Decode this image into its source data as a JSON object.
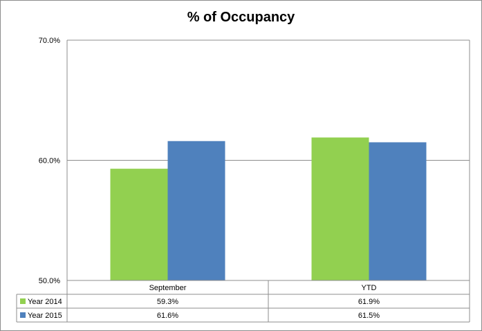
{
  "chart_data": {
    "type": "bar",
    "title": "% of Occupancy",
    "categories": [
      "September",
      "YTD"
    ],
    "series": [
      {
        "name": "Year 2014",
        "values": [
          59.3,
          61.9
        ],
        "labels": [
          "59.3%",
          "61.9%"
        ],
        "color": "#92d050"
      },
      {
        "name": "Year 2015",
        "values": [
          61.6,
          61.5
        ],
        "labels": [
          "61.6%",
          "61.5%"
        ],
        "color": "#4f81bd"
      }
    ],
    "ylim": [
      50,
      70
    ],
    "yticks": [
      50,
      60,
      70
    ],
    "ytick_labels": [
      "50.0%",
      "60.0%",
      "70.0%"
    ],
    "grid": true,
    "legend": "data-table"
  }
}
